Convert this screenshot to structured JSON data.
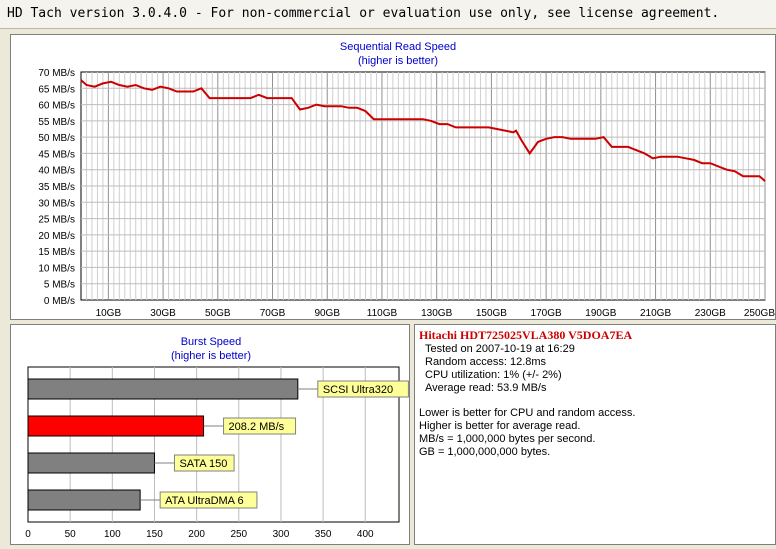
{
  "window": {
    "title": "HD Tach version 3.0.4.0  - For non-commercial or evaluation use only, see license agreement."
  },
  "colors": {
    "line": "#cc0000",
    "bar_gray": "#808080",
    "bar_red": "#ff0000",
    "label_bg": "#ffff99",
    "title_blue": "#0000cc"
  },
  "chart_data": [
    {
      "type": "line",
      "title": "Sequential Read Speed",
      "subtitle": "(higher is better)",
      "ylim": [
        0,
        70
      ],
      "xlim": [
        0,
        250
      ],
      "grid": true,
      "y_ticks": [
        "0 MB/s",
        "5 MB/s",
        "10 MB/s",
        "15 MB/s",
        "20 MB/s",
        "25 MB/s",
        "30 MB/s",
        "35 MB/s",
        "40 MB/s",
        "45 MB/s",
        "50 MB/s",
        "55 MB/s",
        "60 MB/s",
        "65 MB/s",
        "70 MB/s"
      ],
      "x_ticks": [
        "10GB",
        "30GB",
        "50GB",
        "70GB",
        "90GB",
        "110GB",
        "130GB",
        "150GB",
        "170GB",
        "190GB",
        "210GB",
        "230GB",
        "250GB"
      ],
      "x_tick_values": [
        10,
        30,
        50,
        70,
        90,
        110,
        130,
        150,
        170,
        190,
        210,
        230,
        250
      ],
      "series": [
        {
          "x": [
            0,
            2,
            5,
            8,
            11,
            14,
            17,
            20,
            23,
            26,
            29,
            32,
            35,
            38,
            41,
            44,
            47,
            50,
            53,
            56,
            59,
            62,
            65,
            68,
            71,
            74,
            77,
            80,
            83,
            86,
            89,
            92,
            95,
            98,
            101,
            104,
            107,
            110,
            113,
            116,
            119,
            122,
            125,
            128,
            131,
            134,
            137,
            140,
            143,
            146,
            149,
            152,
            155,
            158,
            159,
            161,
            164,
            167,
            170,
            173,
            176,
            179,
            182,
            185,
            188,
            191,
            194,
            197,
            200,
            203,
            206,
            209,
            212,
            215,
            218,
            221,
            224,
            227,
            230,
            233,
            236,
            239,
            242,
            245,
            248,
            250
          ],
          "y": [
            67.5,
            66,
            65.5,
            66.5,
            67,
            66,
            65.5,
            66,
            65,
            64.5,
            65.5,
            65,
            64,
            64,
            64,
            65,
            62,
            62,
            62,
            62,
            62,
            62,
            63,
            62,
            62,
            62,
            62,
            58.5,
            59,
            60,
            59.5,
            59.5,
            59.5,
            59,
            59,
            58,
            55.5,
            55.5,
            55.5,
            55.5,
            55.5,
            55.5,
            55.5,
            55,
            54,
            54,
            53,
            53,
            53,
            53,
            53,
            52.5,
            52,
            51.5,
            52,
            49,
            45,
            48.5,
            49.5,
            50,
            50,
            49.5,
            49.5,
            49.5,
            49.5,
            50,
            47,
            47,
            47,
            46,
            45,
            43.5,
            44,
            44,
            44,
            43.5,
            43,
            42,
            42,
            41,
            40,
            39.5,
            38,
            38,
            38,
            36.5
          ]
        }
      ]
    },
    {
      "type": "bar",
      "orientation": "horizontal",
      "title": "Burst Speed",
      "subtitle": "(higher is better)",
      "xlim": [
        0,
        440
      ],
      "grid": true,
      "x_ticks": [
        "0",
        "50",
        "100",
        "150",
        "200",
        "250",
        "300",
        "350",
        "400"
      ],
      "x_tick_values": [
        0,
        50,
        100,
        150,
        200,
        250,
        300,
        350,
        400
      ],
      "bars": [
        {
          "label": "SCSI Ultra320",
          "value": 320,
          "highlight": false
        },
        {
          "label": "208.2 MB/s",
          "value": 208.2,
          "highlight": true
        },
        {
          "label": "SATA 150",
          "value": 150,
          "highlight": false
        },
        {
          "label": "ATA UltraDMA 6",
          "value": 133,
          "highlight": false
        }
      ]
    }
  ],
  "info": {
    "drive_name": "Hitachi HDT725025VLA380 V5DOA7EA",
    "tested": "Tested on 2007-10-19 at 16:29",
    "random_access": "Random access: 12.8ms",
    "cpu": "CPU utilization: 1% (+/- 2%)",
    "average_read": "Average read: 53.9 MB/s",
    "notes": [
      "Lower is better for CPU and random access.",
      "Higher is better for average read.",
      "MB/s = 1,000,000 bytes per second.",
      "GB = 1,000,000,000 bytes."
    ]
  }
}
